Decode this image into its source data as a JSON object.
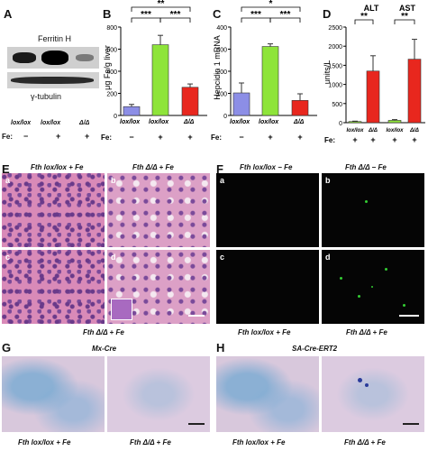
{
  "panels": {
    "A": {
      "label": "A",
      "band_label": "Ferritin H",
      "loading_label": "γ-tubulin",
      "genotypes": [
        "lox/lox",
        "lox/lox",
        "Δ/Δ"
      ],
      "fe_label": "Fe:",
      "fe": [
        "−",
        "+",
        "+"
      ]
    },
    "B": {
      "label": "B",
      "ylabel": "μg Fe/g liver",
      "genotypes": [
        "lox/lox",
        "lox/lox",
        "Δ/Δ"
      ],
      "fe_label": "Fe:",
      "fe": [
        "−",
        "+",
        "+"
      ],
      "sig": [
        "***",
        "**",
        "***"
      ],
      "yticks": [
        "0",
        "200",
        "400",
        "600",
        "800"
      ]
    },
    "C": {
      "label": "C",
      "ylabel": "Hepcidin 1 mRNA",
      "genotypes": [
        "lox/lox",
        "lox/lox",
        "Δ/Δ"
      ],
      "fe_label": "Fe:",
      "fe": [
        "−",
        "+",
        "+"
      ],
      "sig": [
        "***",
        "*",
        "***"
      ],
      "yticks": [
        "0",
        "100",
        "200",
        "300",
        "400"
      ]
    },
    "D": {
      "label": "D",
      "ylabel": "units/L",
      "groups": [
        "ALT",
        "AST"
      ],
      "genotypes": [
        "lox/lox",
        "Δ/Δ",
        "lox/lox",
        "Δ/Δ"
      ],
      "fe_label": "Fe:",
      "fe": [
        "+",
        "+",
        "+",
        "+"
      ],
      "sig": [
        "**",
        "**"
      ],
      "yticks": [
        "0",
        "500",
        "1000",
        "1500",
        "2000",
        "2500"
      ]
    },
    "E": {
      "label": "E",
      "top_left": "Fth lox/lox + Fe",
      "top_right": "Fth Δ/Δ + Fe",
      "bottom": "Fth Δ/Δ + Fe",
      "subs": [
        "a",
        "b",
        "c",
        "d"
      ]
    },
    "F": {
      "label": "F",
      "top_left": "Fth lox/lox − Fe",
      "top_right": "Fth Δ/Δ − Fe",
      "bottom_left": "Fth lox/lox + Fe",
      "bottom_right": "Fth Δ/Δ + Fe",
      "subs": [
        "a",
        "b",
        "c",
        "d"
      ]
    },
    "G": {
      "label": "G",
      "title": "Mx-Cre",
      "left": "Fth lox/lox + Fe",
      "right": "Fth Δ/Δ + Fe"
    },
    "H": {
      "label": "H",
      "title": "SA-Cre-ERT2",
      "left": "Fth lox/lox + Fe",
      "right": "Fth Δ/Δ + Fe"
    }
  },
  "chart_data": [
    {
      "type": "bar",
      "panel": "B",
      "categories": [
        "lox/lox −Fe",
        "lox/lox +Fe",
        "Δ/Δ +Fe"
      ],
      "values": [
        80,
        640,
        255
      ],
      "errors": [
        20,
        85,
        30
      ],
      "ylim": [
        0,
        800
      ],
      "ylabel": "μg Fe/g liver",
      "colors": [
        "#8c8ee6",
        "#8ee43a",
        "#e8271e"
      ]
    },
    {
      "type": "bar",
      "panel": "C",
      "categories": [
        "lox/lox −Fe",
        "lox/lox +Fe",
        "Δ/Δ +Fe"
      ],
      "values": [
        102,
        312,
        68
      ],
      "errors": [
        45,
        12,
        30
      ],
      "ylim": [
        0,
        400
      ],
      "ylabel": "Hepcidin 1 mRNA",
      "colors": [
        "#8c8ee6",
        "#8ee43a",
        "#e8271e"
      ]
    },
    {
      "type": "bar",
      "panel": "D",
      "categories": [
        "ALT lox/lox",
        "ALT Δ/Δ",
        "AST lox/lox",
        "AST Δ/Δ"
      ],
      "values": [
        30,
        1350,
        60,
        1660
      ],
      "errors": [
        10,
        400,
        20,
        520
      ],
      "ylim": [
        0,
        2500
      ],
      "ylabel": "units/L",
      "colors": [
        "#8ee43a",
        "#e8271e",
        "#8ee43a",
        "#e8271e"
      ]
    }
  ]
}
